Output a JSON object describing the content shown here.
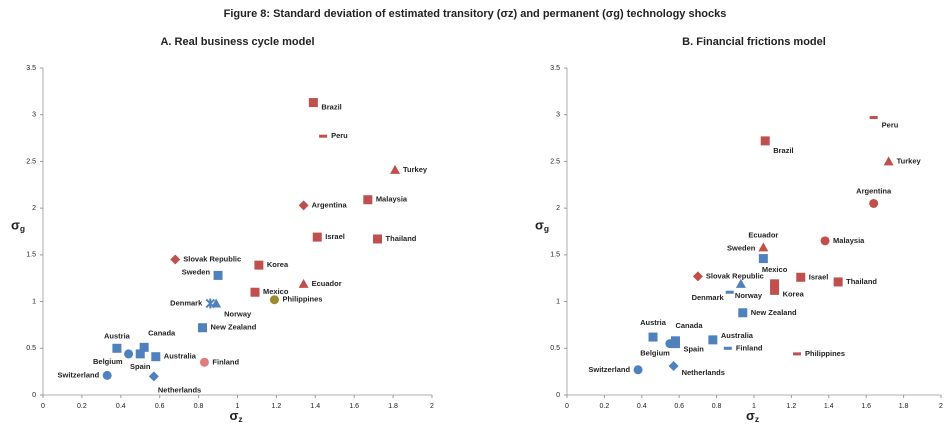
{
  "title": "Figure 8: Standard deviation of estimated transitory (σz) and permanent (σg) technology shocks",
  "chart_data": [
    {
      "type": "scatter",
      "title": "A. Real business cycle model",
      "x_label": "σz",
      "y_label": "σg",
      "xlim": [
        0,
        2
      ],
      "ylim": [
        0,
        3.5
      ],
      "xticks": [
        0,
        0.2,
        0.4,
        0.6,
        0.8,
        1,
        1.2,
        1.4,
        1.6,
        1.8,
        2
      ],
      "yticks": [
        0,
        0.5,
        1,
        1.5,
        2,
        2.5,
        3,
        3.5
      ],
      "points": [
        {
          "label": "Brazil",
          "x": 1.39,
          "y": 3.13,
          "marker": "square",
          "color": "#c0504d"
        },
        {
          "label": "Peru",
          "x": 1.44,
          "y": 2.77,
          "marker": "dash",
          "color": "#c0504d"
        },
        {
          "label": "Turkey",
          "x": 1.81,
          "y": 2.41,
          "marker": "triangle",
          "color": "#c0504d"
        },
        {
          "label": "Argentina",
          "x": 1.34,
          "y": 2.03,
          "marker": "diamond",
          "color": "#c0504d"
        },
        {
          "label": "Malaysia",
          "x": 1.67,
          "y": 2.09,
          "marker": "square",
          "color": "#c0504d"
        },
        {
          "label": "Israel",
          "x": 1.41,
          "y": 1.69,
          "marker": "square",
          "color": "#c0504d"
        },
        {
          "label": "Thailand",
          "x": 1.72,
          "y": 1.67,
          "marker": "square",
          "color": "#c0504d"
        },
        {
          "label": "Slovak Republic",
          "x": 0.68,
          "y": 1.45,
          "marker": "diamond",
          "color": "#c0504d"
        },
        {
          "label": "Korea",
          "x": 1.11,
          "y": 1.39,
          "marker": "square",
          "color": "#c0504d"
        },
        {
          "label": "Sweden",
          "x": 0.9,
          "y": 1.28,
          "marker": "square",
          "color": "#4f81bd"
        },
        {
          "label": "Ecuador",
          "x": 1.34,
          "y": 1.19,
          "marker": "triangle",
          "color": "#c0504d"
        },
        {
          "label": "Mexico",
          "x": 1.09,
          "y": 1.1,
          "marker": "square",
          "color": "#c0504d"
        },
        {
          "label": "Philippines",
          "x": 1.19,
          "y": 1.02,
          "marker": "circle",
          "color": "#9b8b2e"
        },
        {
          "label": "Denmark",
          "x": 0.86,
          "y": 0.98,
          "marker": "cross",
          "color": "#4f81bd"
        },
        {
          "label": "Norway",
          "x": 0.89,
          "y": 0.98,
          "marker": "triangle",
          "color": "#4f81bd"
        },
        {
          "label": "New Zealand",
          "x": 0.82,
          "y": 0.72,
          "marker": "square",
          "color": "#4f81bd"
        },
        {
          "label": "Canada",
          "x": 0.52,
          "y": 0.51,
          "marker": "square",
          "color": "#4f81bd"
        },
        {
          "label": "Austria",
          "x": 0.38,
          "y": 0.5,
          "marker": "square",
          "color": "#4f81bd"
        },
        {
          "label": "Australia",
          "x": 0.58,
          "y": 0.41,
          "marker": "square",
          "color": "#4f81bd"
        },
        {
          "label": "Belgium",
          "x": 0.44,
          "y": 0.44,
          "marker": "circle",
          "color": "#4f81bd"
        },
        {
          "label": "Spain",
          "x": 0.5,
          "y": 0.44,
          "marker": "square",
          "color": "#4f81bd"
        },
        {
          "label": "Finland",
          "x": 0.83,
          "y": 0.35,
          "marker": "circle",
          "color": "#e07b7b"
        },
        {
          "label": "Switzerland",
          "x": 0.33,
          "y": 0.21,
          "marker": "circle",
          "color": "#4f81bd"
        },
        {
          "label": "Netherlands",
          "x": 0.57,
          "y": 0.2,
          "marker": "diamond",
          "color": "#4f81bd"
        }
      ]
    },
    {
      "type": "scatter",
      "title": "B. Financial frictions model",
      "x_label": "σz",
      "y_label": "σg",
      "xlim": [
        0,
        2
      ],
      "ylim": [
        0,
        3.5
      ],
      "xticks": [
        0,
        0.2,
        0.4,
        0.6,
        0.8,
        1,
        1.2,
        1.4,
        1.6,
        1.8,
        2
      ],
      "yticks": [
        0,
        0.5,
        1,
        1.5,
        2,
        2.5,
        3,
        3.5
      ],
      "points": [
        {
          "label": "Peru",
          "x": 1.64,
          "y": 2.97,
          "marker": "dash",
          "color": "#c0504d"
        },
        {
          "label": "Brazil",
          "x": 1.06,
          "y": 2.72,
          "marker": "square",
          "color": "#c0504d"
        },
        {
          "label": "Turkey",
          "x": 1.72,
          "y": 2.5,
          "marker": "triangle",
          "color": "#c0504d"
        },
        {
          "label": "Argentina",
          "x": 1.64,
          "y": 2.05,
          "marker": "circle",
          "color": "#c0504d"
        },
        {
          "label": "Malaysia",
          "x": 1.38,
          "y": 1.65,
          "marker": "circle",
          "color": "#c0504d"
        },
        {
          "label": "Ecuador",
          "x": 1.05,
          "y": 1.58,
          "marker": "triangle",
          "color": "#c0504d"
        },
        {
          "label": "Sweden",
          "x": 1.05,
          "y": 1.46,
          "marker": "square",
          "color": "#4f81bd"
        },
        {
          "label": "Slovak Republic",
          "x": 0.7,
          "y": 1.27,
          "marker": "diamond",
          "color": "#c0504d"
        },
        {
          "label": "Israel",
          "x": 1.25,
          "y": 1.26,
          "marker": "square",
          "color": "#c0504d"
        },
        {
          "label": "Mexico",
          "x": 1.11,
          "y": 1.19,
          "marker": "square",
          "color": "#c0504d"
        },
        {
          "label": "Thailand",
          "x": 1.45,
          "y": 1.21,
          "marker": "square",
          "color": "#c0504d"
        },
        {
          "label": "Korea",
          "x": 1.11,
          "y": 1.12,
          "marker": "square",
          "color": "#c0504d"
        },
        {
          "label": "Denmark",
          "x": 0.87,
          "y": 1.1,
          "marker": "dash",
          "color": "#4f81bd"
        },
        {
          "label": "Norway",
          "x": 0.93,
          "y": 1.19,
          "marker": "triangle",
          "color": "#4f81bd"
        },
        {
          "label": "New Zealand",
          "x": 0.94,
          "y": 0.88,
          "marker": "square",
          "color": "#4f81bd"
        },
        {
          "label": "Austria",
          "x": 0.46,
          "y": 0.62,
          "marker": "square",
          "color": "#4f81bd"
        },
        {
          "label": "Canada",
          "x": 0.58,
          "y": 0.58,
          "marker": "square",
          "color": "#4f81bd"
        },
        {
          "label": "Belgium",
          "x": 0.55,
          "y": 0.55,
          "marker": "circle",
          "color": "#4f81bd"
        },
        {
          "label": "Spain",
          "x": 0.58,
          "y": 0.55,
          "marker": "square",
          "color": "#4f81bd"
        },
        {
          "label": "Australia",
          "x": 0.78,
          "y": 0.59,
          "marker": "square",
          "color": "#4f81bd"
        },
        {
          "label": "Finland",
          "x": 0.86,
          "y": 0.5,
          "marker": "dash",
          "color": "#4f81bd"
        },
        {
          "label": "Philippines",
          "x": 1.23,
          "y": 0.44,
          "marker": "dash",
          "color": "#c0504d"
        },
        {
          "label": "Switzerland",
          "x": 0.38,
          "y": 0.27,
          "marker": "circle",
          "color": "#4f81bd"
        },
        {
          "label": "Netherlands",
          "x": 0.57,
          "y": 0.31,
          "marker": "diamond",
          "color": "#4f81bd"
        }
      ]
    }
  ]
}
